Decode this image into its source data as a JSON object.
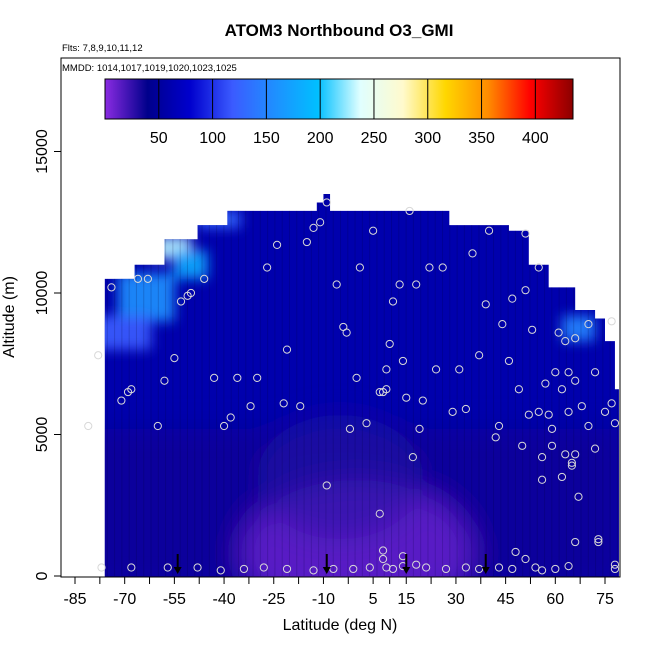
{
  "chart_data": {
    "type": "heatmap",
    "title": "ATOM3 Northbound O3_GMI",
    "subtitle_flights": "Flts: 7,8,9,10,11,12",
    "subtitle_dates": "MMDD: 1014,1017,1019,1020,1023,1025",
    "xlabel": "Latitude (deg N)",
    "ylabel": "Altitude (m)",
    "xlim": [
      -88,
      84
    ],
    "ylim": [
      0,
      18200
    ],
    "x_ticks": [
      -85,
      -70,
      -55,
      -40,
      -25,
      -10,
      5,
      15,
      30,
      45,
      60,
      75
    ],
    "x_tick_labels": [
      "-85",
      "-70",
      "-55",
      "-40",
      "-25",
      "-10",
      "5",
      "15",
      "30",
      "45",
      "60",
      "75"
    ],
    "y_ticks": [
      0,
      5000,
      10000,
      15000
    ],
    "y_tick_labels": [
      "0",
      "5000",
      "10000",
      "15000"
    ],
    "colorbar": {
      "min": 0,
      "max": 435,
      "ticks": [
        50,
        100,
        150,
        200,
        250,
        300,
        350,
        400
      ],
      "tick_labels": [
        "50",
        "100",
        "150",
        "200",
        "250",
        "300",
        "350",
        "400"
      ],
      "colors": [
        "#8a2be2",
        "#00008b",
        "#0000cd",
        "#3b5bff",
        "#1e90ff",
        "#00bfff",
        "#e0ffff",
        "#fffacd",
        "#ffd700",
        "#ff8c00",
        "#ff0000",
        "#8b0000"
      ]
    },
    "envelope_top_altitude": [
      {
        "lat": -76,
        "alt": 10500
      },
      {
        "lat": -67,
        "alt": 11000
      },
      {
        "lat": -58,
        "alt": 11900
      },
      {
        "lat": -48,
        "alt": 12400
      },
      {
        "lat": -39,
        "alt": 12900
      },
      {
        "lat": -28,
        "alt": 12900
      },
      {
        "lat": -12,
        "alt": 13200
      },
      {
        "lat": -10,
        "alt": 13500
      },
      {
        "lat": -8,
        "alt": 12900
      },
      {
        "lat": 25,
        "alt": 12900
      },
      {
        "lat": 28,
        "alt": 12400
      },
      {
        "lat": 40,
        "alt": 12400
      },
      {
        "lat": 46,
        "alt": 12200
      },
      {
        "lat": 52,
        "alt": 11000
      },
      {
        "lat": 58,
        "alt": 10200
      },
      {
        "lat": 66,
        "alt": 9400
      },
      {
        "lat": 72,
        "alt": 9100
      },
      {
        "lat": 75,
        "alt": 8300
      },
      {
        "lat": 78,
        "alt": 6600
      }
    ],
    "high_ozone_regions": [
      {
        "lat_min": -72,
        "lat_max": -55,
        "alt_min": 9000,
        "alt_max": 10700,
        "value": 160
      },
      {
        "lat_min": -62,
        "lat_max": -50,
        "alt_min": 11200,
        "alt_max": 12000,
        "value": 230
      },
      {
        "lat_min": -55,
        "lat_max": -45,
        "alt_min": 10500,
        "alt_max": 11500,
        "value": 180
      },
      {
        "lat_min": -80,
        "lat_max": -62,
        "alt_min": 8000,
        "alt_max": 9200,
        "value": 120
      },
      {
        "lat_min": -48,
        "lat_max": -35,
        "alt_min": 12300,
        "alt_max": 12900,
        "value": 130
      },
      {
        "lat_min": 62,
        "lat_max": 72,
        "alt_min": 8300,
        "alt_max": 9200,
        "value": 150
      }
    ],
    "background_value": 60,
    "lower_troposphere_value": 35,
    "sample_points": [
      [
        -78,
        7800
      ],
      [
        -74,
        10200
      ],
      [
        -68,
        6600
      ],
      [
        -66,
        10500
      ],
      [
        -63,
        10500
      ],
      [
        -71,
        6200
      ],
      [
        -69,
        6500
      ],
      [
        -60,
        5300
      ],
      [
        -58,
        6900
      ],
      [
        -55,
        7700
      ],
      [
        -53,
        9700
      ],
      [
        -51,
        9900
      ],
      [
        -50,
        10000
      ],
      [
        -46,
        10500
      ],
      [
        -43,
        7000
      ],
      [
        -40,
        5300
      ],
      [
        -38,
        5600
      ],
      [
        -36,
        7000
      ],
      [
        -32,
        6000
      ],
      [
        -30,
        7000
      ],
      [
        -27,
        10900
      ],
      [
        -24,
        11700
      ],
      [
        -22,
        6100
      ],
      [
        -21,
        8000
      ],
      [
        -17,
        6000
      ],
      [
        -15,
        11800
      ],
      [
        -13,
        12300
      ],
      [
        -11,
        12500
      ],
      [
        -9,
        13200
      ],
      [
        -6,
        10300
      ],
      [
        -4,
        8800
      ],
      [
        -3,
        8600
      ],
      [
        -2,
        5200
      ],
      [
        0,
        7000
      ],
      [
        1,
        10900
      ],
      [
        3,
        5400
      ],
      [
        5,
        12200
      ],
      [
        7,
        6500
      ],
      [
        8,
        6500
      ],
      [
        9,
        6600
      ],
      [
        9,
        7300
      ],
      [
        10,
        8200
      ],
      [
        11,
        9700
      ],
      [
        13,
        10300
      ],
      [
        14,
        7600
      ],
      [
        15,
        6300
      ],
      [
        16,
        12900
      ],
      [
        17,
        4200
      ],
      [
        18,
        10300
      ],
      [
        19,
        5200
      ],
      [
        20,
        6200
      ],
      [
        22,
        10900
      ],
      [
        24,
        7300
      ],
      [
        26,
        10900
      ],
      [
        29,
        5800
      ],
      [
        31,
        7300
      ],
      [
        33,
        5900
      ],
      [
        35,
        11400
      ],
      [
        37,
        7800
      ],
      [
        39,
        9600
      ],
      [
        40,
        12200
      ],
      [
        42,
        4900
      ],
      [
        43,
        5300
      ],
      [
        44,
        8900
      ],
      [
        46,
        7600
      ],
      [
        47,
        9800
      ],
      [
        49,
        6600
      ],
      [
        50,
        4600
      ],
      [
        51,
        12100
      ],
      [
        51,
        10100
      ],
      [
        52,
        5700
      ],
      [
        53,
        8700
      ],
      [
        55,
        10900
      ],
      [
        55,
        5800
      ],
      [
        56,
        4200
      ],
      [
        56,
        3400
      ],
      [
        57,
        6800
      ],
      [
        58,
        5700
      ],
      [
        59,
        5200
      ],
      [
        59,
        4600
      ],
      [
        60,
        7200
      ],
      [
        61,
        8600
      ],
      [
        62,
        6600
      ],
      [
        62,
        3500
      ],
      [
        63,
        4300
      ],
      [
        63,
        8300
      ],
      [
        64,
        5800
      ],
      [
        64,
        7200
      ],
      [
        65,
        4000
      ],
      [
        65,
        3900
      ],
      [
        66,
        4300
      ],
      [
        66,
        6900
      ],
      [
        66,
        8400
      ],
      [
        67,
        2800
      ],
      [
        68,
        6000
      ],
      [
        70,
        8900
      ],
      [
        70,
        5300
      ],
      [
        72,
        7200
      ],
      [
        72,
        4500
      ],
      [
        73,
        1300
      ],
      [
        75,
        5800
      ],
      [
        77,
        9000
      ],
      [
        77,
        6100
      ],
      [
        78,
        5400
      ],
      [
        -81,
        5300
      ],
      [
        -77,
        300
      ],
      [
        -68,
        300
      ],
      [
        -57,
        300
      ],
      [
        -48,
        300
      ],
      [
        -41,
        200
      ],
      [
        -34,
        250
      ],
      [
        -28,
        300
      ],
      [
        -21,
        250
      ],
      [
        -13,
        200
      ],
      [
        -9,
        3200
      ],
      [
        -7,
        250
      ],
      [
        -1,
        250
      ],
      [
        4,
        300
      ],
      [
        7,
        2200
      ],
      [
        8,
        900
      ],
      [
        8,
        600
      ],
      [
        9,
        300
      ],
      [
        11,
        250
      ],
      [
        14,
        350
      ],
      [
        14,
        700
      ],
      [
        18,
        400
      ],
      [
        21,
        300
      ],
      [
        27,
        250
      ],
      [
        33,
        300
      ],
      [
        37,
        250
      ],
      [
        43,
        300
      ],
      [
        47,
        250
      ],
      [
        48,
        850
      ],
      [
        51,
        600
      ],
      [
        54,
        300
      ],
      [
        56,
        200
      ],
      [
        60,
        250
      ],
      [
        64,
        350
      ],
      [
        66,
        1200
      ],
      [
        73,
        1200
      ],
      [
        78,
        400
      ],
      [
        78,
        250
      ]
    ],
    "arrow_latitudes": [
      -54,
      -9,
      15,
      39
    ]
  }
}
